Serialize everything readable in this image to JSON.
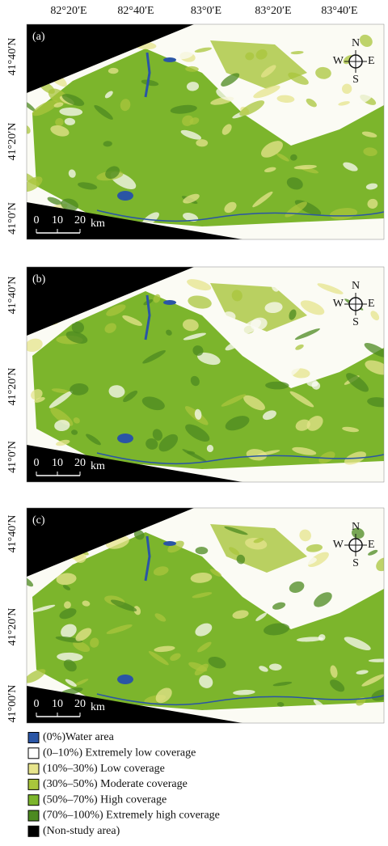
{
  "longitude_labels": [
    "82°20′E",
    "82°40′E",
    "83°0′E",
    "83°20′E",
    "83°40′E"
  ],
  "panels": [
    {
      "label": "(a)",
      "latitude_labels": [
        "41°40′N",
        "41°20′N",
        "41°0′N"
      ],
      "compass": {
        "n": "N",
        "s": "S",
        "w": "W",
        "e": "E"
      },
      "scale_bar": {
        "ticks": [
          0,
          10,
          20
        ],
        "unit": "km"
      }
    },
    {
      "label": "(b)",
      "latitude_labels": [
        "41°40′N",
        "41°20′N",
        "41°0′N"
      ],
      "compass": {
        "n": "N",
        "s": "S",
        "w": "W",
        "e": "E"
      },
      "scale_bar": {
        "ticks": [
          0,
          10,
          20
        ],
        "unit": "km"
      }
    },
    {
      "label": "(c)",
      "latitude_labels": [
        "41°40′N",
        "41°20′N",
        "41°00′N"
      ],
      "compass": {
        "n": "N",
        "s": "S",
        "w": "W",
        "e": "E"
      },
      "scale_bar": {
        "ticks": [
          0,
          10,
          20
        ],
        "unit": "km"
      }
    }
  ],
  "legend": [
    {
      "label": "(0%)Water area",
      "color": "#2a55a5"
    },
    {
      "label": "(0–10%) Extremely low coverage",
      "color": "#ffffff"
    },
    {
      "label": "(10%–30%) Low coverage",
      "color": "#e6e48c"
    },
    {
      "label": "(30%–50%) Moderate coverage",
      "color": "#a9c63c"
    },
    {
      "label": "(50%–70%) High coverage",
      "color": "#7cb52c"
    },
    {
      "label": "(70%–100%) Extremely high coverage",
      "color": "#4c8a20"
    },
    {
      "label": "(Non-study area)",
      "color": "#000000"
    }
  ]
}
